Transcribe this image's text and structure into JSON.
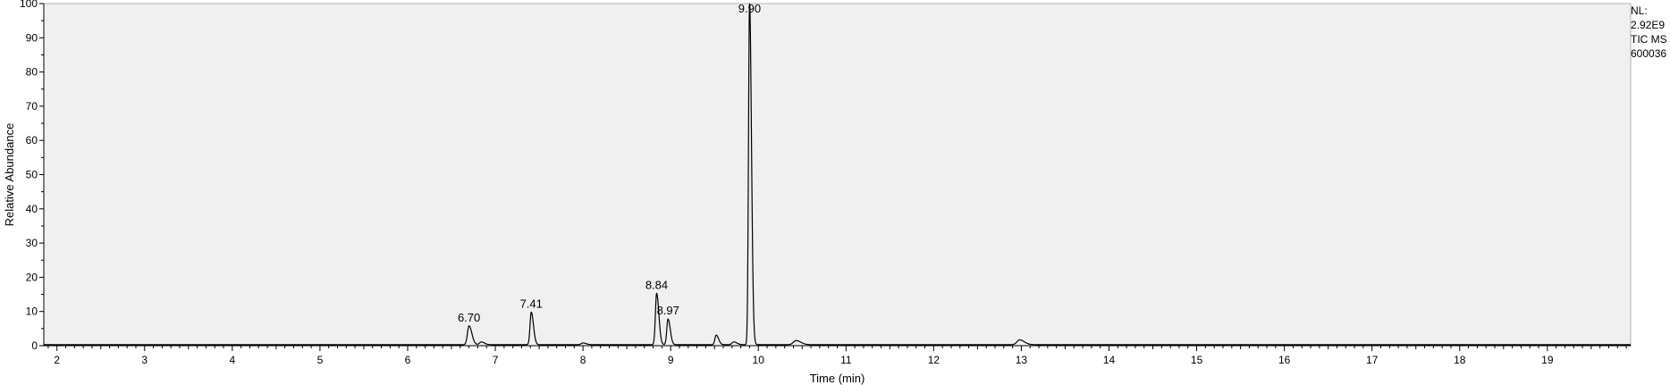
{
  "info": {
    "nl_label": "NL:",
    "nl_value": "2.92E9",
    "trace": "TIC  MS",
    "file": "600036"
  },
  "chart_data": {
    "type": "line",
    "xlabel": "Time (min)",
    "ylabel": "Relative Abundance",
    "xlim": [
      1.85,
      19.95
    ],
    "ylim": [
      0,
      100
    ],
    "x_ticks": [
      2,
      3,
      4,
      5,
      6,
      7,
      8,
      9,
      10,
      11,
      12,
      13,
      14,
      15,
      16,
      17,
      18,
      19
    ],
    "y_ticks": [
      0,
      10,
      20,
      30,
      40,
      50,
      60,
      70,
      80,
      90,
      100
    ],
    "grid": false,
    "peaks": [
      {
        "rt": 6.7,
        "height": 5.5,
        "width": 0.018,
        "label": "6.70"
      },
      {
        "rt": 6.84,
        "height": 0.8,
        "width": 0.02,
        "label": ""
      },
      {
        "rt": 7.41,
        "height": 9.5,
        "width": 0.014,
        "label": "7.41"
      },
      {
        "rt": 8.0,
        "height": 0.5,
        "width": 0.02,
        "label": ""
      },
      {
        "rt": 8.84,
        "height": 15.0,
        "width": 0.014,
        "label": "8.84"
      },
      {
        "rt": 8.97,
        "height": 7.5,
        "width": 0.014,
        "label": "8.97"
      },
      {
        "rt": 9.52,
        "height": 2.8,
        "width": 0.015,
        "label": ""
      },
      {
        "rt": 9.72,
        "height": 0.8,
        "width": 0.02,
        "label": ""
      },
      {
        "rt": 9.9,
        "height": 100,
        "width": 0.012,
        "label": "9.90"
      },
      {
        "rt": 10.43,
        "height": 1.2,
        "width": 0.03,
        "label": ""
      },
      {
        "rt": 12.98,
        "height": 1.4,
        "width": 0.03,
        "label": ""
      }
    ],
    "baseline": 0.3,
    "colors": {
      "plot_bg": "#f0f0f0",
      "trace": "#000000",
      "annotation": "#000000",
      "axis": "#000000"
    }
  }
}
